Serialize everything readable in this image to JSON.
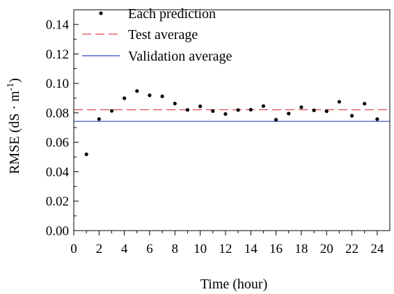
{
  "chart_data": {
    "type": "scatter",
    "xlabel": "Time (hour)",
    "ylabel_main": "RMSE (dS · m",
    "ylabel_sup": "-1",
    "ylabel_close": ")",
    "xlim": [
      0,
      25
    ],
    "ylim": [
      0,
      0.15
    ],
    "x_ticks": [
      0,
      2,
      4,
      6,
      8,
      10,
      12,
      14,
      16,
      18,
      20,
      22,
      24
    ],
    "x_tick_labels": [
      "0",
      "2",
      "4",
      "6",
      "8",
      "10",
      "12",
      "14",
      "16",
      "18",
      "20",
      "22",
      "24"
    ],
    "y_ticks": [
      0,
      0.02,
      0.04,
      0.06,
      0.08,
      0.1,
      0.12,
      0.14
    ],
    "y_tick_labels": [
      "0.00",
      "0.02",
      "0.04",
      "0.06",
      "0.08",
      "0.10",
      "0.12",
      "0.14"
    ],
    "grid": false,
    "legend_position": "top-left",
    "series": [
      {
        "name": "Each prediction",
        "kind": "points",
        "color": "#000000",
        "x": [
          1,
          2,
          3,
          4,
          5,
          6,
          7,
          8,
          9,
          10,
          11,
          12,
          13,
          14,
          15,
          16,
          17,
          18,
          19,
          20,
          21,
          22,
          23,
          24
        ],
        "y": [
          0.0518,
          0.0758,
          0.0813,
          0.0899,
          0.0948,
          0.0919,
          0.0912,
          0.0863,
          0.082,
          0.0844,
          0.0812,
          0.0792,
          0.0819,
          0.0821,
          0.0846,
          0.0753,
          0.0795,
          0.0838,
          0.0817,
          0.0811,
          0.0875,
          0.078,
          0.0862,
          0.0757
        ]
      },
      {
        "name": "Test average",
        "kind": "hline",
        "style": "dashed",
        "color": "#e0464e",
        "y": 0.0821
      },
      {
        "name": "Validation average",
        "kind": "hline",
        "style": "solid",
        "color": "#3340cc",
        "y": 0.0742
      }
    ]
  }
}
